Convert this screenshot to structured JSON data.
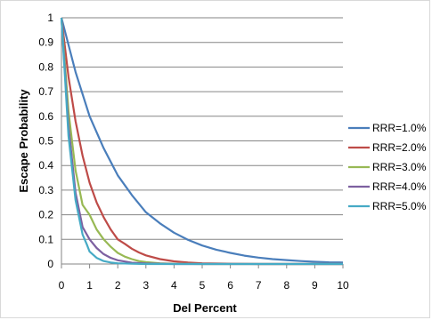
{
  "chart_data": {
    "type": "line",
    "title": "",
    "xlabel": "Del Percent",
    "ylabel": "Escape Probability",
    "xlim": [
      0,
      10
    ],
    "ylim": [
      0,
      1
    ],
    "x_ticks": [
      "0",
      "1",
      "2",
      "3",
      "4",
      "5",
      "6",
      "7",
      "8",
      "9",
      "10"
    ],
    "y_ticks": [
      "0",
      "0.1",
      "0.2",
      "0.3",
      "0.4",
      "0.5",
      "0.6",
      "0.7",
      "0.8",
      "0.9",
      "1"
    ],
    "grid": "horizontal",
    "legend_position": "right",
    "series": [
      {
        "name": "RRR=1.0%",
        "color": "#4a7ebb",
        "x": [
          0,
          0.5,
          1,
          1.5,
          2,
          2.5,
          3,
          3.5,
          4,
          4.5,
          5,
          5.5,
          6,
          6.5,
          7,
          7.5,
          8,
          8.5,
          9,
          9.5,
          10
        ],
        "y": [
          1,
          0.78,
          0.6,
          0.47,
          0.36,
          0.28,
          0.21,
          0.165,
          0.127,
          0.098,
          0.075,
          0.058,
          0.045,
          0.034,
          0.026,
          0.02,
          0.016,
          0.012,
          0.009,
          0.007,
          0.006
        ]
      },
      {
        "name": "RRR=2.0%",
        "color": "#be4b48",
        "x": [
          0,
          0.25,
          0.5,
          0.75,
          1,
          1.25,
          1.5,
          1.75,
          2,
          2.25,
          2.5,
          2.75,
          3,
          3.5,
          4,
          4.5,
          5,
          6,
          7,
          8,
          10
        ],
        "y": [
          1,
          0.76,
          0.58,
          0.44,
          0.33,
          0.25,
          0.19,
          0.14,
          0.1,
          0.082,
          0.062,
          0.047,
          0.035,
          0.02,
          0.011,
          0.006,
          0.003,
          0.001,
          0,
          0,
          0
        ]
      },
      {
        "name": "RRR=3.0%",
        "color": "#98b954",
        "x": [
          0,
          0.25,
          0.5,
          0.75,
          1,
          1.25,
          1.5,
          1.75,
          2,
          2.25,
          2.5,
          2.75,
          3,
          3.5,
          4,
          5,
          6,
          8,
          10
        ],
        "y": [
          1,
          0.62,
          0.38,
          0.24,
          0.2,
          0.14,
          0.1,
          0.07,
          0.045,
          0.03,
          0.02,
          0.012,
          0.008,
          0.003,
          0.001,
          0,
          0,
          0,
          0
        ]
      },
      {
        "name": "RRR=4.0%",
        "color": "#7d60a0",
        "x": [
          0,
          0.25,
          0.5,
          0.75,
          1,
          1.25,
          1.5,
          1.75,
          2,
          2.5,
          3,
          4,
          5,
          6,
          8,
          10
        ],
        "y": [
          1,
          0.56,
          0.29,
          0.15,
          0.1,
          0.065,
          0.04,
          0.025,
          0.015,
          0.005,
          0.002,
          0,
          0,
          0,
          0,
          0
        ]
      },
      {
        "name": "RRR=5.0%",
        "color": "#46aac5",
        "x": [
          0,
          0.25,
          0.5,
          0.75,
          0.9,
          1,
          1.25,
          1.5,
          1.75,
          2,
          2.5,
          3,
          4,
          5,
          6,
          8,
          10
        ],
        "y": [
          1,
          0.52,
          0.26,
          0.12,
          0.08,
          0.05,
          0.025,
          0.012,
          0.006,
          0.003,
          0.001,
          0,
          0,
          0,
          0,
          0,
          0
        ]
      }
    ]
  }
}
